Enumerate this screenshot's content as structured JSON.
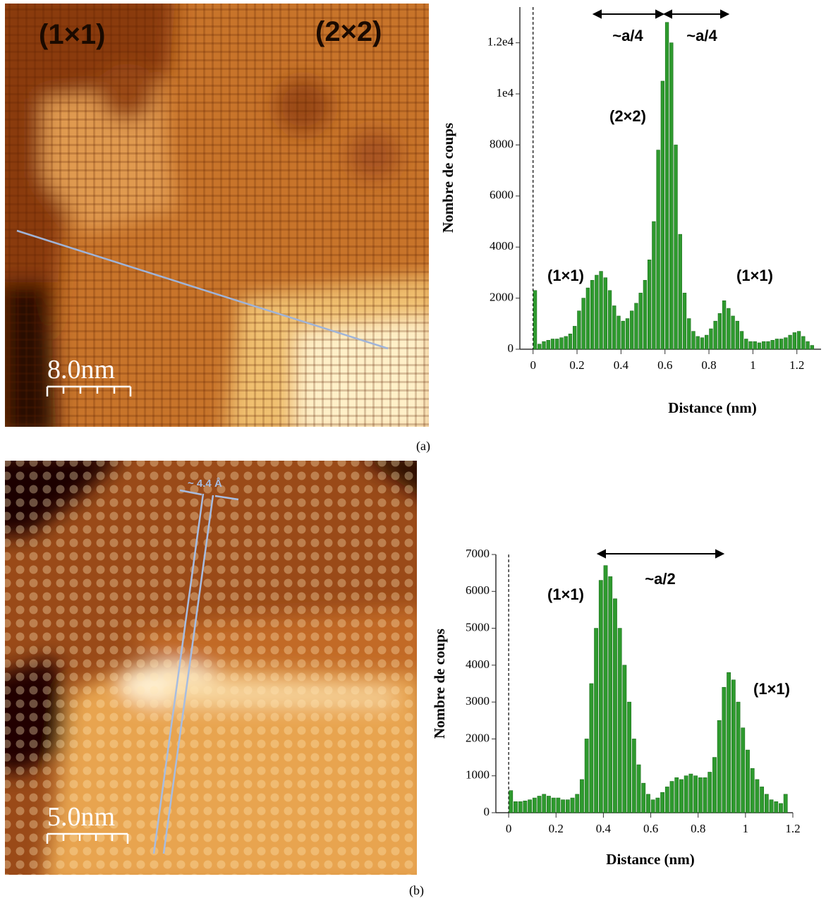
{
  "images": [
    {
      "labels": [
        "(1×1)",
        "(2×2)"
      ],
      "scale_bar": "8.0nm",
      "caption": "(a)"
    },
    {
      "labels": [
        "~ 4.4 Å"
      ],
      "scale_bar": "5.0nm",
      "caption": "(b)"
    }
  ],
  "chart_data": [
    {
      "type": "histogram",
      "x_label": "Distance (nm)",
      "y_label": "Nombre de coups",
      "annotations": [
        "~a/4",
        "~a/4",
        "(2×2)",
        "(1×1)",
        "(1×1)"
      ],
      "color": "#2e9a2e",
      "bins": [
        0,
        0.02,
        0.04,
        0.06,
        0.08,
        0.1,
        0.12,
        0.14,
        0.16,
        0.18,
        0.2,
        0.22,
        0.24,
        0.26,
        0.28,
        0.3,
        0.32,
        0.34,
        0.36,
        0.38,
        0.4,
        0.42,
        0.44,
        0.46,
        0.48,
        0.5,
        0.52,
        0.54,
        0.56,
        0.58,
        0.6,
        0.62,
        0.64,
        0.66,
        0.68,
        0.7,
        0.72,
        0.74,
        0.76,
        0.78,
        0.8,
        0.82,
        0.84,
        0.86,
        0.88,
        0.9,
        0.92,
        0.94,
        0.96,
        0.98,
        1,
        1.02,
        1.04,
        1.06,
        1.08,
        1.1,
        1.12,
        1.14,
        1.16,
        1.18,
        1.2,
        1.22,
        1.24,
        1.26,
        1.28
      ],
      "values": [
        2300,
        200,
        300,
        350,
        400,
        400,
        450,
        500,
        600,
        900,
        1500,
        2000,
        2400,
        2700,
        2900,
        3050,
        2800,
        2300,
        1700,
        1300,
        1100,
        1200,
        1500,
        1800,
        2200,
        2700,
        3500,
        5000,
        7800,
        10500,
        12800,
        12000,
        8000,
        4500,
        2200,
        1200,
        700,
        500,
        450,
        550,
        800,
        1100,
        1400,
        1900,
        1600,
        1300,
        1100,
        700,
        400,
        300,
        300,
        250,
        300,
        300,
        350,
        400,
        400,
        450,
        550,
        650,
        700,
        500,
        300,
        150
      ],
      "xlim": [
        -0.06,
        1.31
      ],
      "xticks": [
        0,
        0.2,
        0.4,
        0.6,
        0.8,
        1,
        1.2
      ],
      "ylim": [
        0,
        13400
      ],
      "yticks": [
        0,
        2000,
        4000,
        6000,
        8000,
        {
          "value": 10000,
          "label": "1e4"
        },
        {
          "value": 12000,
          "label": "1.2e4"
        }
      ]
    },
    {
      "type": "histogram",
      "x_label": "Distance (nm)",
      "y_label": "Nombre de coups",
      "annotations": [
        "~a/2",
        "(1×1)",
        "(1×1)"
      ],
      "color": "#2e9a2e",
      "bins": [
        0,
        0.02,
        0.04,
        0.06,
        0.08,
        0.1,
        0.12,
        0.14,
        0.16,
        0.18,
        0.2,
        0.22,
        0.24,
        0.26,
        0.28,
        0.3,
        0.32,
        0.34,
        0.36,
        0.38,
        0.4,
        0.42,
        0.44,
        0.46,
        0.48,
        0.5,
        0.52,
        0.54,
        0.56,
        0.58,
        0.6,
        0.62,
        0.64,
        0.66,
        0.68,
        0.7,
        0.72,
        0.74,
        0.76,
        0.78,
        0.8,
        0.82,
        0.84,
        0.86,
        0.88,
        0.9,
        0.92,
        0.94,
        0.96,
        0.98,
        1,
        1.02,
        1.04,
        1.06,
        1.08,
        1.1,
        1.12,
        1.14,
        1.16,
        1.18
      ],
      "values": [
        600,
        300,
        300,
        320,
        350,
        400,
        450,
        500,
        450,
        400,
        400,
        350,
        350,
        400,
        500,
        900,
        2000,
        3500,
        5000,
        6300,
        6700,
        6400,
        5800,
        5000,
        4000,
        3000,
        2000,
        1300,
        800,
        500,
        350,
        400,
        550,
        700,
        850,
        950,
        900,
        1000,
        1050,
        1000,
        950,
        950,
        1100,
        1500,
        2500,
        3400,
        3800,
        3600,
        3000,
        2300,
        1700,
        1200,
        900,
        700,
        500,
        350,
        300,
        250,
        500
      ],
      "xlim": [
        -0.054,
        1.2
      ],
      "xticks": [
        0,
        0.2,
        0.4,
        0.6,
        0.8,
        1,
        1.2
      ],
      "ylim": [
        0,
        7000
      ],
      "yticks": [
        0,
        1000,
        2000,
        3000,
        4000,
        5000,
        6000,
        7000
      ]
    }
  ]
}
